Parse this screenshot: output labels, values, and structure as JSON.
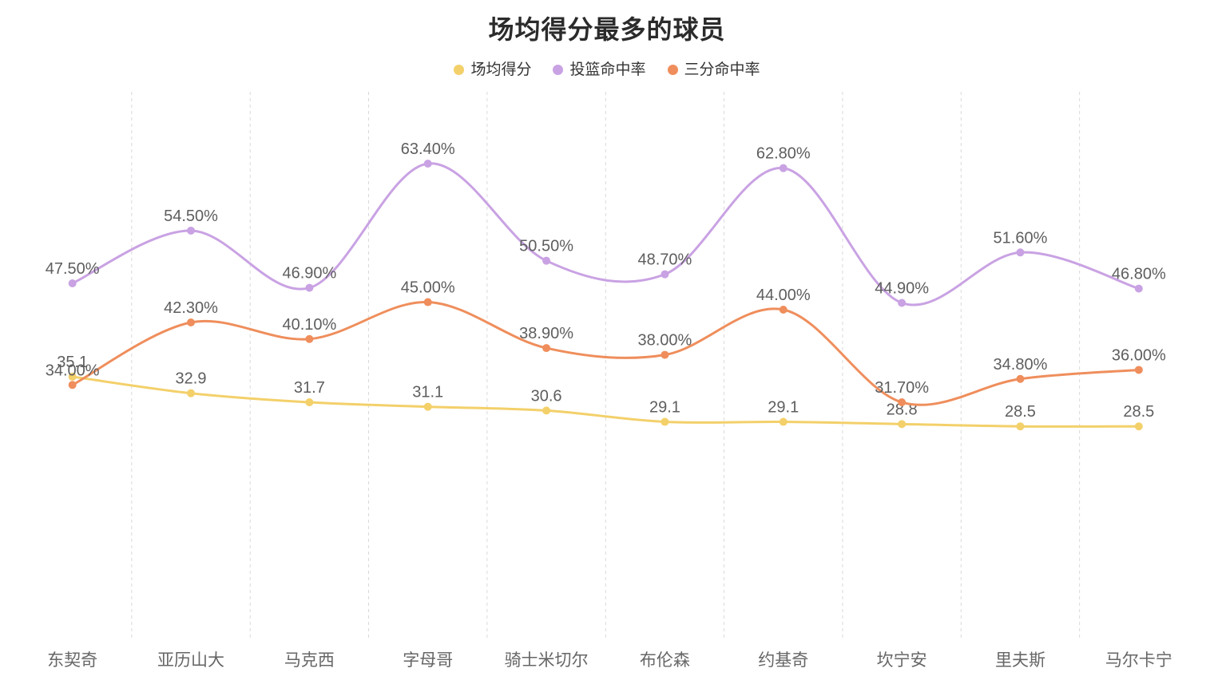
{
  "title": "场均得分最多的球员",
  "chart_data": {
    "type": "line",
    "title": "场均得分最多的球员",
    "smooth": true,
    "legend_position": "top",
    "grid": {
      "vertical_dashed_lines": true,
      "horizontal_lines": false
    },
    "y_axis": {
      "visible": false,
      "min": 0,
      "max": 73
    },
    "x_axis_label_color": "#666666",
    "data_label_color": "#5e5e5e",
    "grid_line_color": "#d9d9d9",
    "title_color": "#2b2b2b",
    "legend_text_color": "#333333",
    "background_color": "#ffffff",
    "categories": [
      "东契奇",
      "亚历山大",
      "马克西",
      "字母哥",
      "骑士米切尔",
      "布伦森",
      "约基奇",
      "坎宁安",
      "里夫斯",
      "马尔卡宁"
    ],
    "series": [
      {
        "name": "场均得分",
        "color": "#f3d06a",
        "values": [
          35.1,
          32.9,
          31.7,
          31.1,
          30.6,
          29.1,
          29.1,
          28.8,
          28.5,
          28.5
        ],
        "labels": [
          "35.1",
          "32.9",
          "31.7",
          "31.1",
          "30.6",
          "29.1",
          "29.1",
          "28.8",
          "28.5",
          "28.5"
        ]
      },
      {
        "name": "投篮命中率",
        "color": "#c9a2e3",
        "values": [
          47.5,
          54.5,
          46.9,
          63.4,
          50.5,
          48.7,
          62.8,
          44.9,
          51.6,
          46.8
        ],
        "labels": [
          "47.50%",
          "54.50%",
          "46.90%",
          "63.40%",
          "50.50%",
          "48.70%",
          "62.80%",
          "44.90%",
          "51.60%",
          "46.80%"
        ]
      },
      {
        "name": "三分命中率",
        "color": "#ef8e5c",
        "values": [
          34.0,
          42.3,
          40.1,
          45.0,
          38.9,
          38.0,
          44.0,
          31.7,
          34.8,
          36.0
        ],
        "labels": [
          "34.00%",
          "42.30%",
          "40.10%",
          "45.00%",
          "38.90%",
          "38.00%",
          "44.00%",
          "31.70%",
          "34.80%",
          "36.00%"
        ]
      }
    ]
  }
}
